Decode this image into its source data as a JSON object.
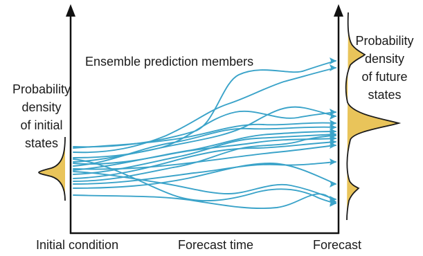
{
  "diagram": {
    "title": "Ensemble prediction members",
    "initial_density_label": [
      "Probability",
      "density",
      "of initial",
      "states"
    ],
    "future_density_label": [
      "Probability",
      "density",
      "of future",
      "states"
    ],
    "x_labels": {
      "initial_condition": "Initial condition",
      "forecast_time": "Forecast time",
      "forecast": "Forecast"
    },
    "member_count": 17
  },
  "colors": {
    "member_line": "#3aa3c9",
    "density_fill": "#e9c45a",
    "density_outline": "#1a1a1a",
    "axis": "#111111",
    "text": "#1a1a1a"
  }
}
